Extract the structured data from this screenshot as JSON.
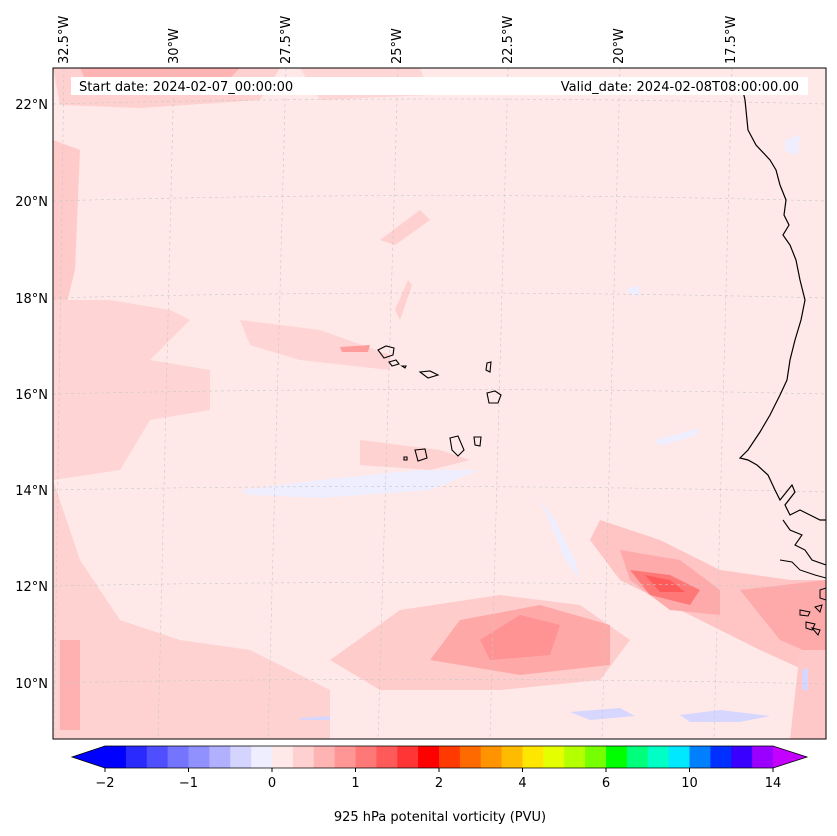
{
  "header": {
    "start_date": "Start date: 2024-02-07_00:00:00",
    "valid_date": "Valid_date: 2024-02-08T08:00:00.00"
  },
  "axes": {
    "lon_labels": [
      "32.5°W",
      "30°W",
      "27.5°W",
      "25°W",
      "22.5°W",
      "20°W",
      "17.5°W"
    ],
    "lat_labels": [
      "22°N",
      "20°N",
      "18°N",
      "16°N",
      "14°N",
      "12°N",
      "10°N"
    ]
  },
  "colorbar": {
    "label": "925 hPa potenital vorticity (PVU)",
    "tick_labels": [
      "−2",
      "−1",
      "0",
      "1",
      "2",
      "4",
      "6",
      "10",
      "14"
    ],
    "colors": [
      "#0000ff",
      "#2a2aff",
      "#4f4fff",
      "#7474ff",
      "#9090ff",
      "#b0b0ff",
      "#d4d4ff",
      "#eeeeff",
      "#ffe8e8",
      "#ffd0d0",
      "#ffb4b4",
      "#ff9696",
      "#ff7878",
      "#ff5a5a",
      "#ff3434",
      "#ff0000",
      "#ff3a00",
      "#ff6a00",
      "#ff9400",
      "#ffbb00",
      "#ffe600",
      "#e4ff00",
      "#b4ff00",
      "#76ff00",
      "#00ff00",
      "#00ff7a",
      "#00ffc4",
      "#00e8ff",
      "#0080ff",
      "#0030ff",
      "#3a00ff",
      "#9a00ff"
    ],
    "under_color": "#0000ff",
    "over_color": "#c400ff"
  },
  "map": {
    "background": "#ffe8e8",
    "coast_color": "#000000"
  }
}
